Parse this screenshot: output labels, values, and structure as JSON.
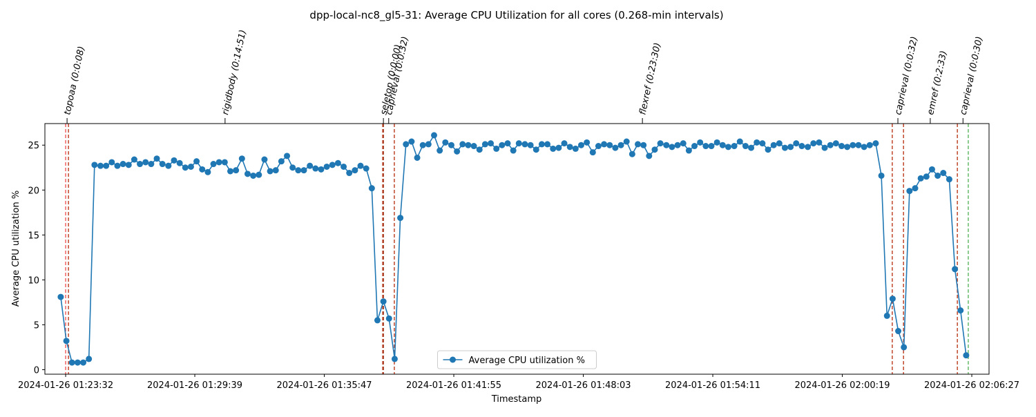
{
  "chart_data": {
    "type": "line",
    "title": "dpp-local-nc8_gl5-31: Average CPU Utilization for all cores (0.268-min intervals)",
    "xlabel": "Timestamp",
    "ylabel": "Average CPU utilization %",
    "x": [
      "2024-01-26 01:23:18",
      "2024-01-26 01:23:34",
      "2024-01-26 01:23:50",
      "2024-01-26 01:24:06",
      "2024-01-26 01:24:22",
      "2024-01-26 01:24:38",
      "2024-01-26 01:24:54",
      "2024-01-26 01:25:11",
      "2024-01-26 01:25:27",
      "2024-01-26 01:25:43",
      "2024-01-26 01:25:59",
      "2024-01-26 01:26:15",
      "2024-01-26 01:26:31",
      "2024-01-26 01:26:47",
      "2024-01-26 01:27:03",
      "2024-01-26 01:27:19",
      "2024-01-26 01:27:35",
      "2024-01-26 01:27:51",
      "2024-01-26 01:28:07",
      "2024-01-26 01:28:24",
      "2024-01-26 01:28:40",
      "2024-01-26 01:28:56",
      "2024-01-26 01:29:12",
      "2024-01-26 01:29:28",
      "2024-01-26 01:29:44",
      "2024-01-26 01:30:00",
      "2024-01-26 01:30:16",
      "2024-01-26 01:30:32",
      "2024-01-26 01:30:48",
      "2024-01-26 01:31:04",
      "2024-01-26 01:31:20",
      "2024-01-26 01:31:36",
      "2024-01-26 01:31:53",
      "2024-01-26 01:32:09",
      "2024-01-26 01:32:25",
      "2024-01-26 01:32:41",
      "2024-01-26 01:32:57",
      "2024-01-26 01:33:13",
      "2024-01-26 01:33:29",
      "2024-01-26 01:33:45",
      "2024-01-26 01:34:01",
      "2024-01-26 01:34:17",
      "2024-01-26 01:34:33",
      "2024-01-26 01:34:49",
      "2024-01-26 01:35:06",
      "2024-01-26 01:35:22",
      "2024-01-26 01:35:38",
      "2024-01-26 01:35:54",
      "2024-01-26 01:36:10",
      "2024-01-26 01:36:26",
      "2024-01-26 01:36:42",
      "2024-01-26 01:36:58",
      "2024-01-26 01:37:14",
      "2024-01-26 01:37:30",
      "2024-01-26 01:37:46",
      "2024-01-26 01:38:02",
      "2024-01-26 01:38:18",
      "2024-01-26 01:38:35",
      "2024-01-26 01:38:51",
      "2024-01-26 01:39:07",
      "2024-01-26 01:39:23",
      "2024-01-26 01:39:39",
      "2024-01-26 01:39:55",
      "2024-01-26 01:40:11",
      "2024-01-26 01:40:27",
      "2024-01-26 01:40:43",
      "2024-01-26 01:40:59",
      "2024-01-26 01:41:15",
      "2024-01-26 01:41:31",
      "2024-01-26 01:41:48",
      "2024-01-26 01:42:04",
      "2024-01-26 01:42:20",
      "2024-01-26 01:42:36",
      "2024-01-26 01:42:52",
      "2024-01-26 01:43:08",
      "2024-01-26 01:43:24",
      "2024-01-26 01:43:40",
      "2024-01-26 01:43:56",
      "2024-01-26 01:44:12",
      "2024-01-26 01:44:28",
      "2024-01-26 01:44:44",
      "2024-01-26 01:45:00",
      "2024-01-26 01:45:17",
      "2024-01-26 01:45:33",
      "2024-01-26 01:45:49",
      "2024-01-26 01:46:05",
      "2024-01-26 01:46:21",
      "2024-01-26 01:46:37",
      "2024-01-26 01:46:53",
      "2024-01-26 01:47:09",
      "2024-01-26 01:47:25",
      "2024-01-26 01:47:41",
      "2024-01-26 01:47:57",
      "2024-01-26 01:48:13",
      "2024-01-26 01:48:30",
      "2024-01-26 01:48:46",
      "2024-01-26 01:49:02",
      "2024-01-26 01:49:18",
      "2024-01-26 01:49:34",
      "2024-01-26 01:49:50",
      "2024-01-26 01:50:06",
      "2024-01-26 01:50:22",
      "2024-01-26 01:50:38",
      "2024-01-26 01:50:54",
      "2024-01-26 01:51:10",
      "2024-01-26 01:51:26",
      "2024-01-26 01:51:42",
      "2024-01-26 01:51:59",
      "2024-01-26 01:52:15",
      "2024-01-26 01:52:31",
      "2024-01-26 01:52:47",
      "2024-01-26 01:53:03",
      "2024-01-26 01:53:19",
      "2024-01-26 01:53:35",
      "2024-01-26 01:53:51",
      "2024-01-26 01:54:07",
      "2024-01-26 01:54:23",
      "2024-01-26 01:54:39",
      "2024-01-26 01:54:55",
      "2024-01-26 01:55:12",
      "2024-01-26 01:55:28",
      "2024-01-26 01:55:44",
      "2024-01-26 01:56:00",
      "2024-01-26 01:56:16",
      "2024-01-26 01:56:32",
      "2024-01-26 01:56:48",
      "2024-01-26 01:57:04",
      "2024-01-26 01:57:20",
      "2024-01-26 01:57:36",
      "2024-01-26 01:57:52",
      "2024-01-26 01:58:08",
      "2024-01-26 01:58:24",
      "2024-01-26 01:58:41",
      "2024-01-26 01:58:57",
      "2024-01-26 01:59:13",
      "2024-01-26 01:59:29",
      "2024-01-26 01:59:45",
      "2024-01-26 02:00:01",
      "2024-01-26 02:00:17",
      "2024-01-26 02:00:33",
      "2024-01-26 02:00:49",
      "2024-01-26 02:01:05",
      "2024-01-26 02:01:21",
      "2024-01-26 02:01:37",
      "2024-01-26 02:01:54",
      "2024-01-26 02:02:10",
      "2024-01-26 02:02:26",
      "2024-01-26 02:02:42",
      "2024-01-26 02:02:58",
      "2024-01-26 02:03:14",
      "2024-01-26 02:03:30",
      "2024-01-26 02:03:46",
      "2024-01-26 02:04:02",
      "2024-01-26 02:04:18",
      "2024-01-26 02:04:34",
      "2024-01-26 02:04:50",
      "2024-01-26 02:05:06",
      "2024-01-26 02:05:23",
      "2024-01-26 02:05:39",
      "2024-01-26 02:05:55",
      "2024-01-26 02:06:11"
    ],
    "series": [
      {
        "name": "Average CPU utilization %",
        "color": "#1f77b4",
        "values": [
          8.1,
          3.2,
          0.8,
          0.8,
          0.8,
          1.2,
          22.8,
          22.7,
          22.7,
          23.1,
          22.7,
          22.9,
          22.8,
          23.4,
          22.9,
          23.1,
          22.9,
          23.5,
          22.9,
          22.7,
          23.3,
          23.0,
          22.5,
          22.6,
          23.2,
          22.3,
          22.0,
          22.9,
          23.1,
          23.1,
          22.1,
          22.2,
          23.5,
          21.8,
          21.6,
          21.7,
          23.4,
          22.1,
          22.2,
          23.2,
          23.8,
          22.5,
          22.2,
          22.2,
          22.7,
          22.4,
          22.3,
          22.6,
          22.8,
          23.0,
          22.6,
          21.9,
          22.2,
          22.7,
          22.4,
          20.2,
          5.5,
          7.6,
          5.7,
          1.2,
          16.9,
          25.1,
          25.4,
          23.6,
          25.0,
          25.1,
          26.1,
          24.4,
          25.3,
          25.0,
          24.3,
          25.1,
          25.0,
          24.9,
          24.5,
          25.1,
          25.2,
          24.6,
          25.0,
          25.2,
          24.4,
          25.2,
          25.1,
          25.0,
          24.5,
          25.1,
          25.1,
          24.6,
          24.7,
          25.2,
          24.8,
          24.6,
          25.0,
          25.3,
          24.2,
          24.9,
          25.1,
          25.0,
          24.7,
          25.0,
          25.4,
          24.0,
          25.1,
          25.0,
          23.8,
          24.5,
          25.2,
          25.0,
          24.8,
          25.0,
          25.2,
          24.4,
          24.9,
          25.3,
          24.9,
          24.9,
          25.3,
          25.0,
          24.8,
          24.9,
          25.4,
          24.9,
          24.7,
          25.3,
          25.2,
          24.5,
          25.0,
          25.2,
          24.7,
          24.8,
          25.2,
          24.9,
          24.8,
          25.2,
          25.3,
          24.7,
          25.0,
          25.2,
          24.9,
          24.8,
          25.0,
          25.0,
          24.8,
          25.0,
          25.2,
          21.6,
          6.0,
          7.9,
          4.3,
          2.5,
          19.9,
          20.2,
          21.3,
          21.5,
          22.3,
          21.6,
          21.9,
          21.2,
          11.2,
          6.6,
          1.6
        ]
      }
    ],
    "xlim": [
      "2024-01-26 01:22:33",
      "2024-01-26 02:07:16"
    ],
    "ylim": [
      -0.5,
      27.4
    ],
    "xticks": [
      "2024-01-26 01:23:32",
      "2024-01-26 01:29:39",
      "2024-01-26 01:35:47",
      "2024-01-26 01:41:55",
      "2024-01-26 01:48:03",
      "2024-01-26 01:54:11",
      "2024-01-26 02:00:19",
      "2024-01-26 02:06:27"
    ],
    "yticks": [
      0,
      5,
      10,
      15,
      20,
      25
    ],
    "legend": "lower center",
    "vlines": [
      {
        "x": "2024-01-26 01:23:32",
        "color": "#f06060"
      },
      {
        "x": "2024-01-26 01:23:40",
        "color": "#c0452a"
      },
      {
        "x": "2024-01-26 01:38:33",
        "color": "#c0452a"
      },
      {
        "x": "2024-01-26 01:38:35",
        "color": "#a33a1e"
      },
      {
        "x": "2024-01-26 01:39:06",
        "color": "#c0452a"
      },
      {
        "x": "2024-01-26 02:02:41",
        "color": "#c0452a"
      },
      {
        "x": "2024-01-26 02:03:13",
        "color": "#c0452a"
      },
      {
        "x": "2024-01-26 02:05:46",
        "color": "#c0452a"
      },
      {
        "x": "2024-01-26 02:06:17",
        "color": "#66bb66"
      }
    ],
    "annotations": [
      {
        "text": "topoaa (0:0:08)",
        "x": "2024-01-26 01:23:36"
      },
      {
        "text": "rigidbody (0:14:51)",
        "x": "2024-01-26 01:31:05"
      },
      {
        "text": "seletop (0:0:00)",
        "x": "2024-01-26 01:38:35"
      },
      {
        "text": "caprieval (0:0:32)",
        "x": "2024-01-26 01:38:50"
      },
      {
        "text": "flexref (0:23:30)",
        "x": "2024-01-26 01:50:51"
      },
      {
        "text": "caprieval (0:0:32)",
        "x": "2024-01-26 02:02:57"
      },
      {
        "text": "emref (0:2:33)",
        "x": "2024-01-26 02:04:29"
      },
      {
        "text": "caprieval (0:0:30)",
        "x": "2024-01-26 02:06:02"
      }
    ]
  }
}
